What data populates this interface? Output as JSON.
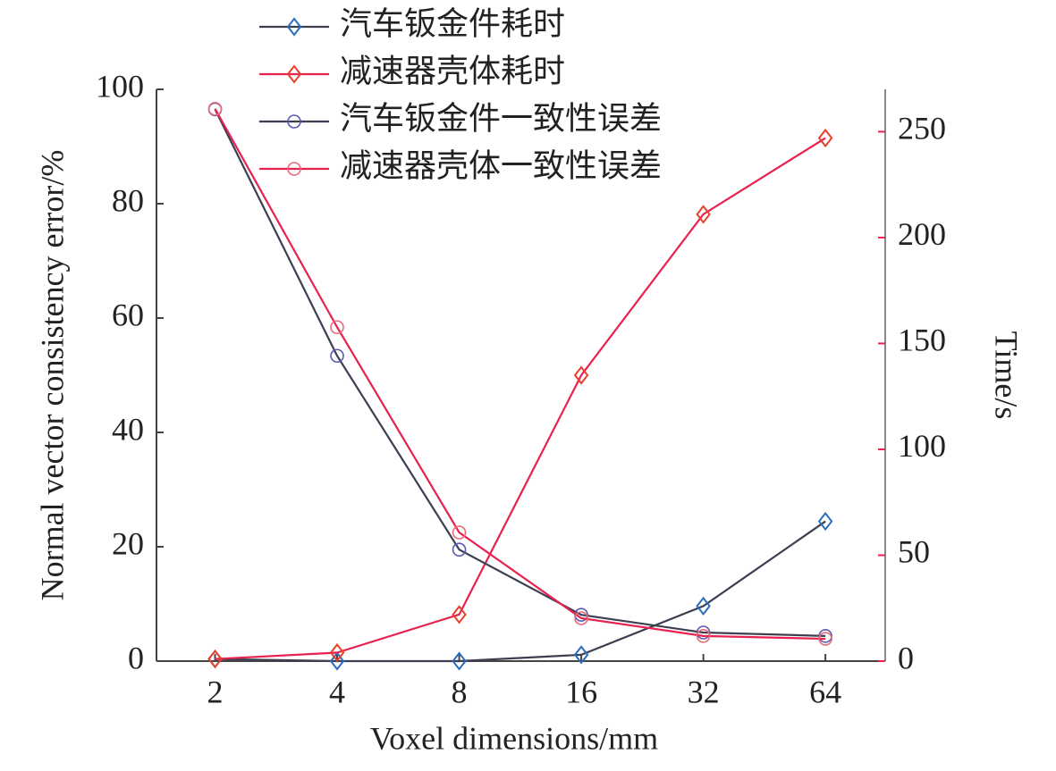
{
  "chart_data": {
    "type": "line",
    "xlabel": "Voxel dimensions/mm",
    "ylabel": "Normal vector consistency error/%",
    "y2label": "Time/s",
    "categories": [
      "2",
      "4",
      "8",
      "16",
      "32",
      "64"
    ],
    "ylim": [
      0,
      100
    ],
    "yticks": [
      0,
      20,
      40,
      60,
      80,
      100
    ],
    "y2lim": [
      0,
      270
    ],
    "y2ticks": [
      0,
      50,
      100,
      150,
      200,
      250
    ],
    "legend": "top",
    "series": [
      {
        "name": "汽车钣金件耗时",
        "axis": "y2",
        "marker": "diamond",
        "color": "#3b3f50",
        "marker_color": "#2a6ebb",
        "values": [
          1,
          0,
          0,
          3,
          26,
          66
        ]
      },
      {
        "name": "减速器壳体耗时",
        "axis": "y2",
        "marker": "diamond",
        "color": "#e8214f",
        "marker_color": "#e8402a",
        "values": [
          1,
          4,
          22,
          135,
          211,
          247
        ]
      },
      {
        "name": "汽车钣金件一致性误差",
        "marker": "circle",
        "color": "#3b3f50",
        "marker_color": "#5a5ab0",
        "values": [
          96.5,
          53.4,
          19.5,
          8.1,
          5,
          4.4
        ]
      },
      {
        "name": "减速器壳体一致性误差",
        "marker": "circle",
        "color": "#e8214f",
        "marker_color": "#e86a7a",
        "values": [
          96.6,
          58.4,
          22.5,
          7.5,
          4.4,
          3.9
        ]
      }
    ]
  }
}
